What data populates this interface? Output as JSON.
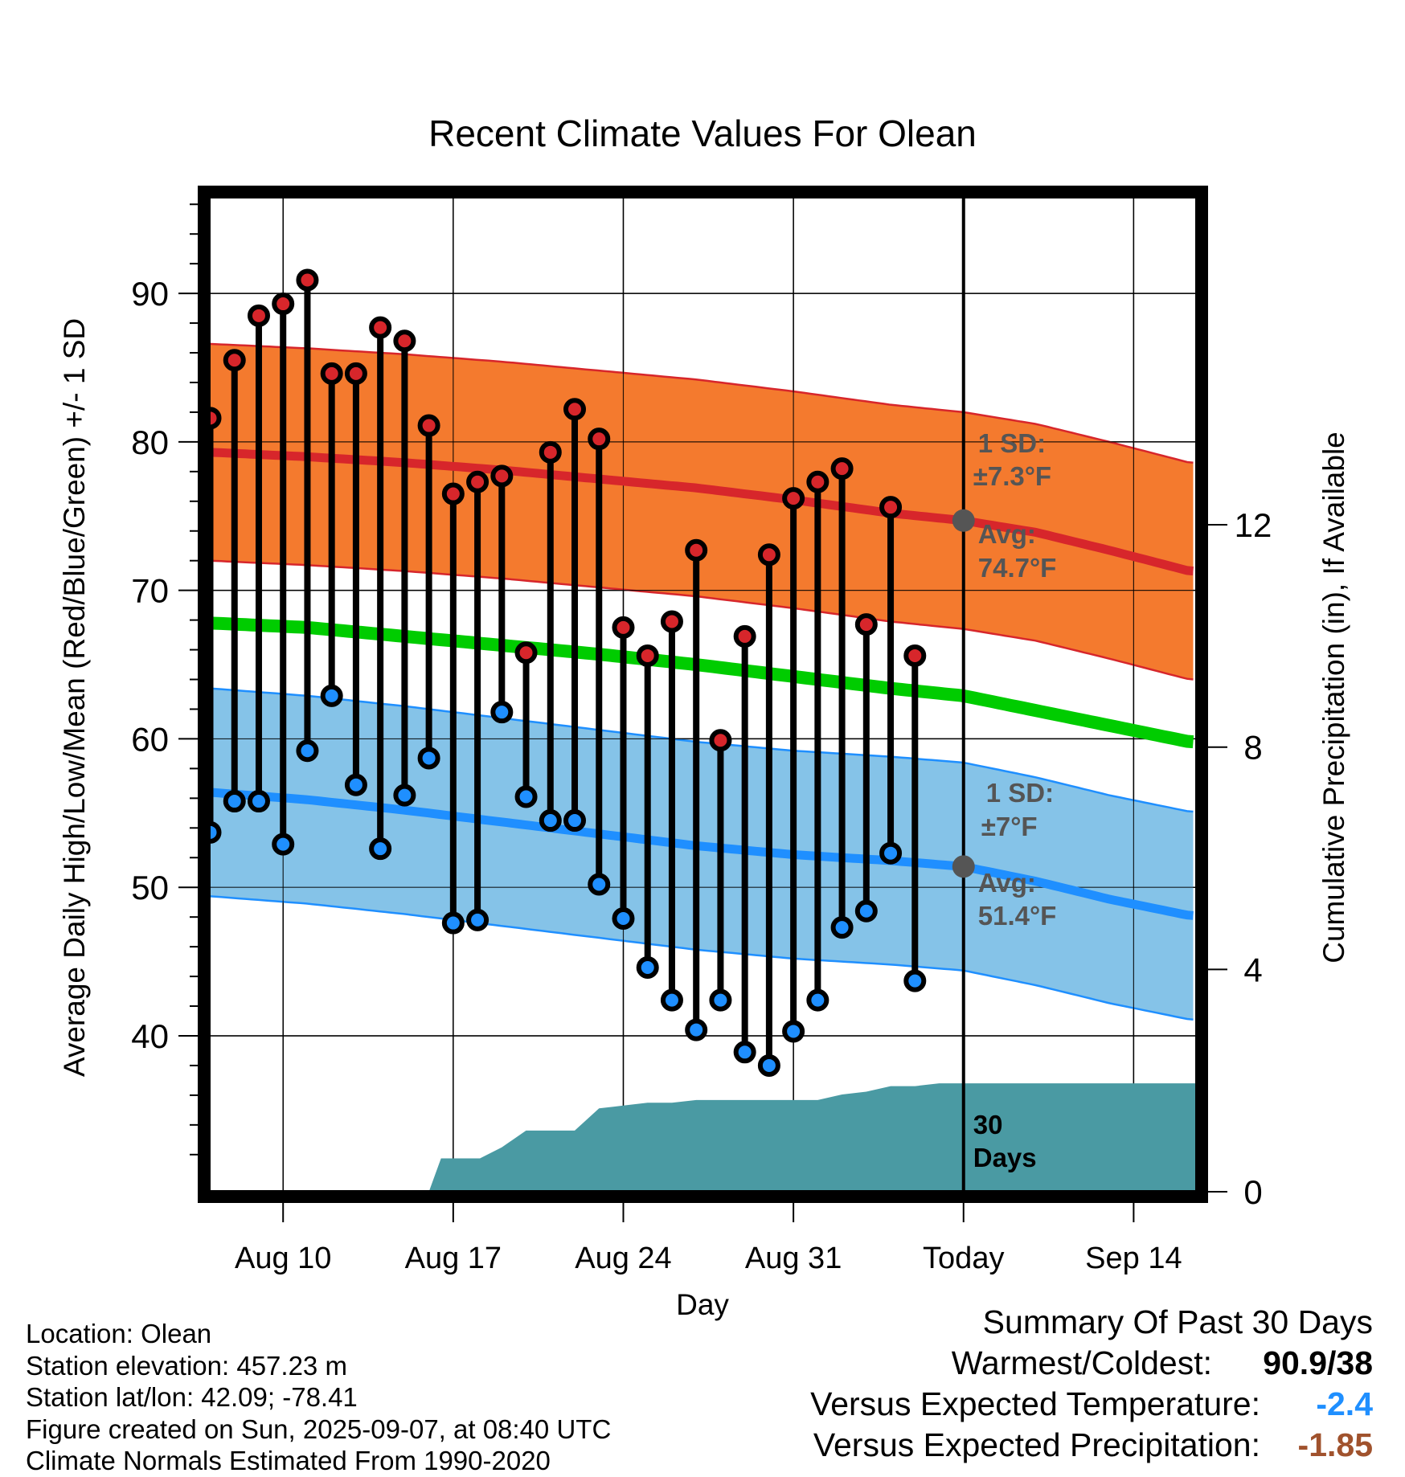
{
  "chart_data": {
    "type": "line",
    "title": "Recent Climate Values For Olean",
    "xlabel": "Day",
    "ylabel": "Average Daily High/Low/Mean (Red/Blue/Green) +/- 1 SD",
    "y2label": "Cumulative Precipitation (in), If Available",
    "x_tick_labels": [
      "Aug 10",
      "Aug 17",
      "Aug 24",
      "Aug 31",
      "Today",
      "Sep 14"
    ],
    "x_tick_days": [
      10,
      17,
      24,
      31,
      38,
      45
    ],
    "xlim": [
      6.95,
      47.6
    ],
    "ylim": [
      29.5,
      96.5
    ],
    "y_ticks": [
      40,
      50,
      60,
      70,
      80,
      90
    ],
    "y2lim": [
      0,
      17.9
    ],
    "y2_ticks": [
      0,
      4,
      8,
      12
    ],
    "grid": true,
    "today_day": 38,
    "colors": {
      "high_band": "#F47A2E",
      "high_line": "#D7262B",
      "low_band": "#85C3E8",
      "low_line": "#1F8FFF",
      "mean_line": "#00CC00",
      "precip": "#4A9AA3",
      "high_marker": "#D7262B",
      "low_marker": "#1F8FFF",
      "annotation": "#555555",
      "dep_temp": "#1F8FFF",
      "dep_precip": "#A0522D"
    },
    "normals": {
      "days": [
        7,
        11,
        15,
        19,
        23,
        27,
        31,
        35,
        38,
        41,
        44,
        47.3
      ],
      "high_avg": [
        79.3,
        79.0,
        78.6,
        78.1,
        77.5,
        76.9,
        76.1,
        75.2,
        74.7,
        73.9,
        72.7,
        71.3
      ],
      "high_sd": 7.3,
      "low_avg": [
        56.4,
        55.9,
        55.2,
        54.4,
        53.6,
        52.8,
        52.2,
        51.8,
        51.4,
        50.4,
        49.2,
        48.1
      ],
      "low_sd": 7,
      "mean_avg": [
        67.8,
        67.5,
        66.9,
        66.3,
        65.7,
        65.0,
        64.2,
        63.4,
        62.9,
        61.9,
        60.9,
        59.8
      ]
    },
    "series": [
      {
        "name": "High",
        "days": [
          7,
          8,
          9,
          10,
          11,
          12,
          13,
          14,
          15,
          16,
          17,
          18,
          19,
          20,
          21,
          22,
          23,
          24,
          25,
          26,
          27,
          28,
          29,
          30,
          31,
          32,
          33,
          34,
          35,
          36,
          37
        ],
        "values": [
          81.6,
          85.5,
          88.5,
          89.3,
          90.9,
          84.6,
          84.6,
          87.7,
          86.8,
          81.1,
          76.5,
          77.3,
          77.7,
          65.8,
          79.3,
          82.2,
          80.2,
          67.5,
          65.6,
          67.9,
          72.7,
          59.9,
          66.9,
          72.4,
          76.2,
          77.3,
          78.2,
          67.7,
          75.6,
          65.6,
          null
        ]
      },
      {
        "name": "Low",
        "days": [
          7,
          8,
          9,
          10,
          11,
          12,
          13,
          14,
          15,
          16,
          17,
          18,
          19,
          20,
          21,
          22,
          23,
          24,
          25,
          26,
          27,
          28,
          29,
          30,
          31,
          32,
          33,
          34,
          35,
          36,
          37
        ],
        "values": [
          53.7,
          55.8,
          55.8,
          52.9,
          59.2,
          62.9,
          56.9,
          52.6,
          56.2,
          58.7,
          47.6,
          47.8,
          61.8,
          56.1,
          54.5,
          54.5,
          50.2,
          47.9,
          44.6,
          42.4,
          40.4,
          42.4,
          38.9,
          38.0,
          40.3,
          42.4,
          47.3,
          48.4,
          52.3,
          43.7,
          null
        ]
      }
    ],
    "precip_cumulative": {
      "days": [
        7,
        16,
        16.5,
        17.1,
        18.1,
        19,
        20,
        21,
        22,
        23,
        24,
        25,
        26,
        27,
        28,
        29,
        30,
        31,
        32,
        33,
        34,
        35,
        36,
        37,
        38,
        47.6
      ],
      "values": [
        0,
        0,
        0.6,
        0.6,
        0.6,
        0.8,
        1.1,
        1.1,
        1.1,
        1.5,
        1.55,
        1.6,
        1.6,
        1.65,
        1.65,
        1.65,
        1.65,
        1.65,
        1.65,
        1.75,
        1.8,
        1.9,
        1.9,
        1.95,
        1.95,
        1.95
      ]
    },
    "annotations": {
      "high_sd_label": "1 SD:",
      "high_sd_value": "±7.3°F",
      "high_avg_label": "Avg:",
      "high_avg_value": "74.7°F",
      "low_sd_label": "1 SD:",
      "low_sd_value": "±7°F",
      "low_avg_label": "Avg:",
      "low_avg_value": "51.4°F",
      "days_line1": "30",
      "days_line2": "Days"
    }
  },
  "footer": {
    "location": "Location: Olean",
    "elevation": "Station elevation: 457.23 m",
    "latlon": "Station lat/lon: 42.09; -78.41",
    "created": "Figure created on Sun, 2025-09-07, at 08:40 UTC",
    "normals": "Climate Normals Estimated From 1990-2020"
  },
  "summary": {
    "title": "Summary Of Past 30 Days",
    "warmest_label": "Warmest/Coldest:",
    "warmest_value": "90.9/38",
    "temp_label": "Versus Expected Temperature:",
    "temp_value": "-2.4",
    "precip_label": "Versus Expected Precipitation:",
    "precip_value": "-1.85"
  }
}
